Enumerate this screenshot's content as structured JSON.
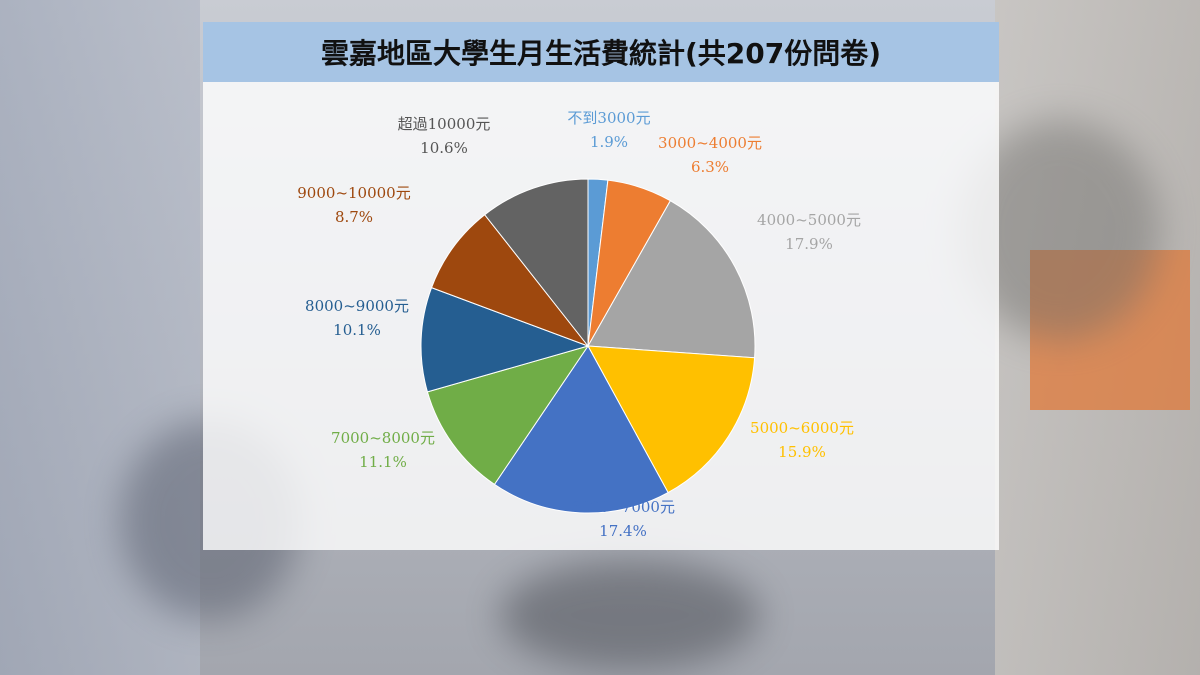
{
  "chart_data": {
    "type": "pie",
    "title": "雲嘉地區大學生月生活費統計(共207份問卷)",
    "slices": [
      {
        "label": "不到3000元",
        "value": 1.9,
        "display": "1.9%",
        "color": "#5b9bd5"
      },
      {
        "label": "3000~4000元",
        "value": 6.3,
        "display": "6.3%",
        "color": "#ed7d31"
      },
      {
        "label": "4000~5000元",
        "value": 17.9,
        "display": "17.9%",
        "color": "#a5a5a5"
      },
      {
        "label": "5000~6000元",
        "value": 15.9,
        "display": "15.9%",
        "color": "#ffc000"
      },
      {
        "label": "6000~7000元",
        "value": 17.4,
        "display": "17.4%",
        "color": "#4472c4"
      },
      {
        "label": "7000~8000元",
        "value": 11.1,
        "display": "11.1%",
        "color": "#70ad47"
      },
      {
        "label": "8000~9000元",
        "value": 10.1,
        "display": "10.1%",
        "color": "#255e91"
      },
      {
        "label": "9000~10000元",
        "value": 8.7,
        "display": "8.7%",
        "color": "#9e480e"
      },
      {
        "label": "超過10000元",
        "value": 10.6,
        "display": "10.6%",
        "color": "#636363"
      }
    ],
    "label_colors": [
      "#5b9bd5",
      "#ed7d31",
      "#a5a5a5",
      "#ffc000",
      "#4472c4",
      "#70ad47",
      "#255e91",
      "#9e480e",
      "#555555"
    ]
  }
}
